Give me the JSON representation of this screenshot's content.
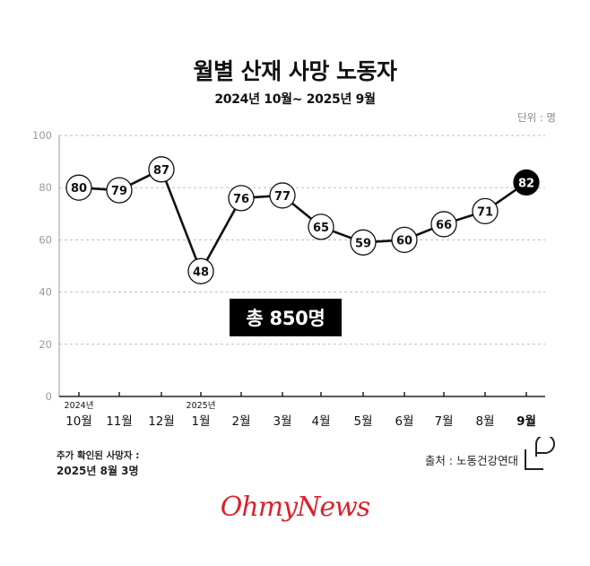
{
  "chart_data": {
    "type": "line",
    "title": "월별 산재 사망 노동자",
    "subtitle": "2024년 10월~ 2025년 9월",
    "unit": "단위 : 명",
    "categories": [
      "10월",
      "11월",
      "12월",
      "1월",
      "2월",
      "3월",
      "4월",
      "5월",
      "6월",
      "7월",
      "8월",
      "9월"
    ],
    "year_labels": {
      "0": "2024년",
      "3": "2025년"
    },
    "values": [
      80,
      79,
      87,
      48,
      76,
      77,
      65,
      59,
      60,
      66,
      71,
      82
    ],
    "yticks": [
      0,
      20,
      40,
      60,
      80,
      100
    ],
    "ylim": [
      0,
      100
    ],
    "grid": true,
    "highlight_last": true,
    "colors": {
      "line": "#111111",
      "highlight": "#000000",
      "grid": "#bdbdbd"
    }
  },
  "total_label": "총 850명",
  "note": {
    "label": "추가 확인된 사망자 :",
    "value": "2025년 8월 3명"
  },
  "source": "출처 : 노동건강연대",
  "brand": "OhmyNews"
}
